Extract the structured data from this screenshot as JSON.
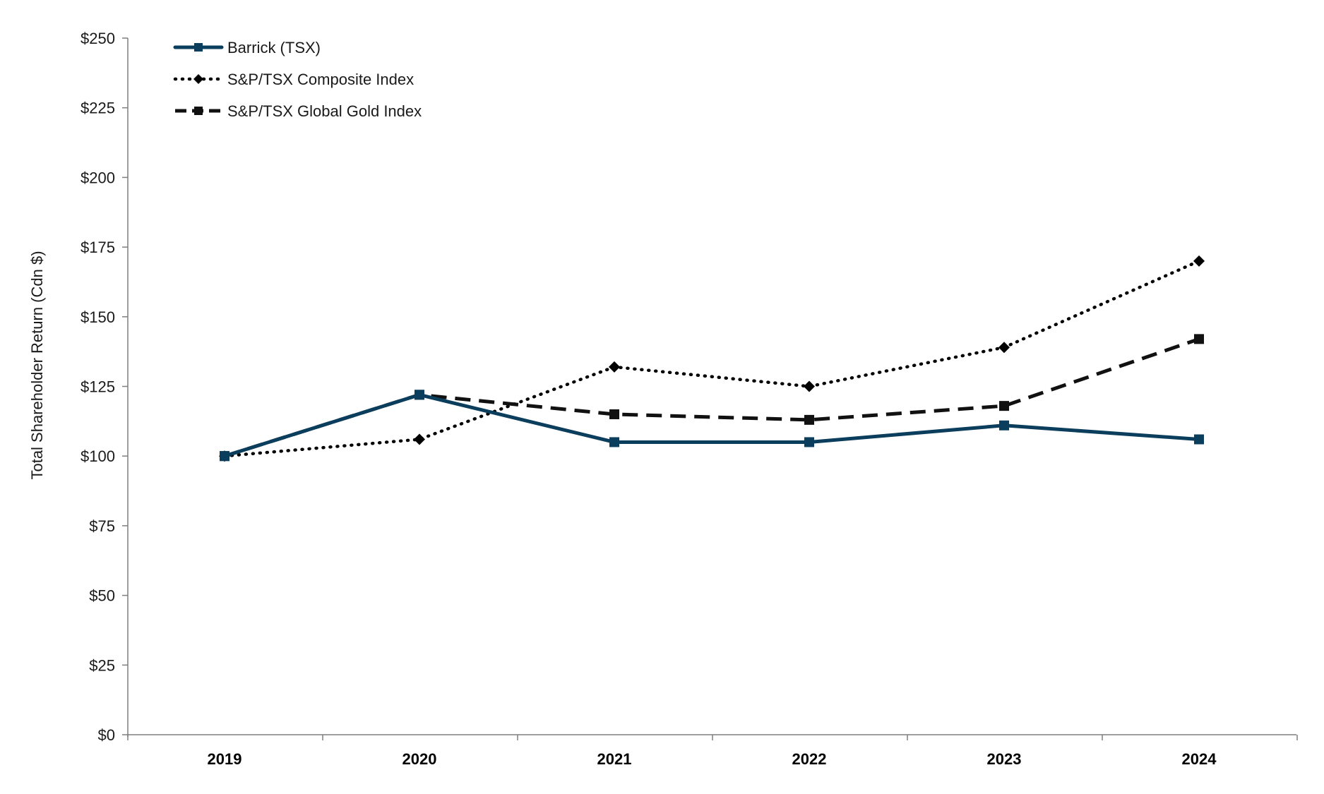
{
  "chart_data": {
    "type": "line",
    "title": "",
    "xlabel": "",
    "ylabel": "Total Shareholder Return (Cdn $)",
    "categories": [
      "2019",
      "2020",
      "2021",
      "2022",
      "2023",
      "2024"
    ],
    "ylim": [
      0,
      250
    ],
    "yticks": [
      0,
      25,
      50,
      75,
      100,
      125,
      150,
      175,
      200,
      225,
      250
    ],
    "ytick_labels": [
      "$0",
      "$25",
      "$50",
      "$75",
      "$100",
      "$125",
      "$150",
      "$175",
      "$200",
      "$225",
      "$250"
    ],
    "grid": false,
    "legend_position": "top-left",
    "series": [
      {
        "name": "Barrick (TSX)",
        "values": [
          100,
          122,
          105,
          105,
          111,
          106
        ],
        "color": "#0b3d5c",
        "style": "solid",
        "marker": "square"
      },
      {
        "name": "S&P/TSX Composite Index",
        "values": [
          100,
          106,
          132,
          125,
          139,
          170
        ],
        "color": "#000000",
        "style": "dotted",
        "marker": "diamond"
      },
      {
        "name": "S&P/TSX Global Gold Index",
        "values": [
          100,
          122,
          115,
          113,
          118,
          142
        ],
        "color": "#111111",
        "style": "dashed",
        "marker": "square"
      }
    ]
  }
}
